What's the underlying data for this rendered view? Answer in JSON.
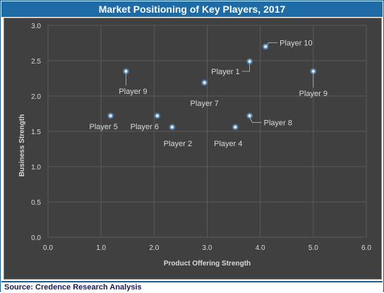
{
  "title": "Market Positioning of Key Players, 2017",
  "source": "Source: Credence Research Analysis",
  "chart_data": {
    "type": "scatter",
    "xlabel": "Product Offering Strength",
    "ylabel": "Business Strength",
    "xlim": [
      0,
      6
    ],
    "ylim": [
      0,
      3
    ],
    "x_ticks": [
      "0.0",
      "1.0",
      "2.0",
      "3.0",
      "4.0",
      "5.0",
      "6.0"
    ],
    "y_ticks": [
      "0.0",
      "0.5",
      "1.0",
      "1.5",
      "2.0",
      "2.5",
      "3.0"
    ],
    "grid": true,
    "marker_color": "#6aa6e0",
    "points": [
      {
        "label": "Player 10",
        "x": 4.1,
        "y": 2.7
      },
      {
        "label": "Player 1",
        "x": 3.8,
        "y": 2.49
      },
      {
        "label": "Player 9",
        "x": 1.47,
        "y": 2.35
      },
      {
        "label": "Player 9",
        "x": 5.0,
        "y": 2.35
      },
      {
        "label": "Player 7",
        "x": 2.95,
        "y": 2.19
      },
      {
        "label": "Player 5",
        "x": 1.18,
        "y": 1.72
      },
      {
        "label": "Player 6",
        "x": 2.06,
        "y": 1.72
      },
      {
        "label": "Player 8",
        "x": 3.8,
        "y": 1.72
      },
      {
        "label": "Player 2",
        "x": 2.34,
        "y": 1.56
      },
      {
        "label": "Player 4",
        "x": 3.53,
        "y": 1.56
      }
    ]
  }
}
